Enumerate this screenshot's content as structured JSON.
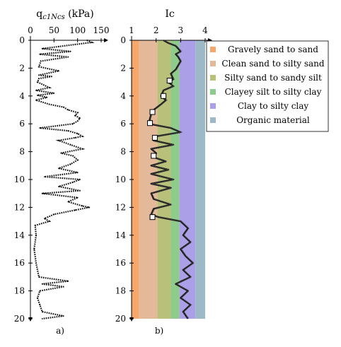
{
  "panels": [
    {
      "id": "a",
      "caption": "a)",
      "x_axis_title": "q",
      "x_axis_subscript": "c1Ncs",
      "x_axis_unit": " (kPa)",
      "x_ticks": [
        "0",
        "50",
        "100",
        "150"
      ],
      "y_ticks": [
        "0",
        "2",
        "4",
        "6",
        "8",
        "10",
        "12",
        "14",
        "16",
        "18",
        "20"
      ]
    },
    {
      "id": "b",
      "caption": "b)",
      "x_axis_title": "Ic",
      "x_ticks": [
        "1",
        "2",
        "3",
        "4"
      ],
      "y_ticks": [
        "0",
        "2",
        "4",
        "6",
        "8",
        "10",
        "12",
        "14",
        "16",
        "18",
        "20"
      ]
    }
  ],
  "legend": [
    {
      "label": "Gravely sand to sand",
      "color": "#f6a86a"
    },
    {
      "label": "Clean sand to silty sand",
      "color": "#e3b99a"
    },
    {
      "label": "Silty sand to sandy silt",
      "color": "#b8c07a"
    },
    {
      "label": "Clayey silt to silty clay",
      "color": "#8fcb8a"
    },
    {
      "label": "Clay to silty clay",
      "color": "#ab9fe8"
    },
    {
      "label": "Organic material",
      "color": "#9db8c6"
    }
  ],
  "chart_data": [
    {
      "type": "line",
      "panel": "a",
      "orientation": "depth-profile",
      "xlim": [
        0,
        150
      ],
      "ylim": [
        0,
        20
      ],
      "y_inverted": true,
      "series": [
        {
          "depth": [
            0,
            0.15,
            0.3,
            0.45,
            0.6,
            0.8,
            1.0,
            1.2,
            1.5,
            1.9,
            2.2,
            2.5,
            2.6,
            2.75,
            3.0,
            3.4,
            3.6,
            3.8,
            3.95,
            4.1,
            4.3,
            4.6,
            4.8,
            5.0,
            5.2,
            5.4,
            5.6,
            5.8,
            6.0,
            6.3,
            6.5,
            6.7,
            6.9,
            7.0,
            7.2,
            7.5,
            7.8,
            8.1,
            8.3,
            8.6,
            8.9,
            9.2,
            9.5,
            9.8,
            10.0,
            10.2,
            10.5,
            10.8,
            11.0,
            11.3,
            11.6,
            11.9,
            12.0,
            12.2,
            12.5,
            12.8,
            13.0,
            13.3,
            14.0,
            15.0,
            16.0,
            17.0,
            17.3,
            17.5,
            17.7,
            18.0,
            18.5,
            19.0,
            19.5,
            19.8,
            20.0
          ],
          "qc1Ncs": [
            120,
            130,
            95,
            60,
            25,
            85,
            20,
            80,
            22,
            18,
            60,
            18,
            45,
            18,
            15,
            40,
            12,
            50,
            15,
            35,
            12,
            40,
            70,
            80,
            100,
            95,
            105,
            100,
            90,
            20,
            80,
            100,
            110,
            95,
            60,
            85,
            110,
            65,
            90,
            100,
            85,
            60,
            100,
            30,
            105,
            90,
            60,
            105,
            25,
            100,
            80,
            110,
            125,
            95,
            50,
            30,
            40,
            10,
            12,
            8,
            12,
            18,
            80,
            25,
            70,
            20,
            15,
            20,
            25,
            70,
            25
          ]
        }
      ]
    },
    {
      "type": "line",
      "panel": "b",
      "orientation": "depth-profile",
      "xlim": [
        1,
        4
      ],
      "ylim": [
        0,
        20
      ],
      "y_inverted": true,
      "series": [
        {
          "name": "Ic",
          "depth": [
            0,
            0.2,
            0.4,
            0.6,
            0.8,
            1.0,
            1.2,
            1.5,
            1.8,
            2.1,
            2.4,
            2.8,
            3.0,
            3.3,
            3.6,
            4.0,
            4.3,
            4.6,
            5.0,
            5.3,
            5.6,
            6.0,
            6.3,
            6.6,
            6.9,
            7.2,
            7.5,
            7.8,
            8.1,
            8.4,
            8.7,
            9.0,
            9.3,
            9.6,
            10.0,
            10.3,
            10.6,
            11.0,
            11.4,
            11.8,
            12.1,
            12.5,
            12.7,
            13.0,
            13.5,
            14.0,
            14.5,
            15.0,
            15.5,
            16.0,
            16.5,
            17.0,
            17.5,
            18.0,
            18.5,
            19.0,
            19.5,
            20.0
          ],
          "Ic": [
            2.3,
            2.5,
            2.8,
            2.9,
            3.0,
            2.8,
            2.9,
            3.0,
            2.9,
            2.8,
            2.6,
            2.7,
            2.5,
            2.7,
            2.3,
            2.2,
            2.4,
            2.2,
            1.9,
            1.8,
            1.75,
            1.7,
            2.6,
            3.0,
            2.0,
            1.9,
            2.7,
            1.8,
            2.0,
            1.9,
            2.4,
            1.8,
            2.5,
            1.8,
            2.7,
            1.8,
            2.6,
            1.8,
            1.9,
            2.6,
            1.9,
            1.8,
            2.1,
            3.0,
            3.3,
            3.1,
            3.4,
            3.0,
            3.2,
            3.5,
            3.1,
            3.4,
            2.8,
            3.3,
            3.0,
            3.4,
            3.1,
            3.3
          ]
        },
        {
          "name": "markers",
          "depth": [
            2.9,
            4.0,
            5.15,
            5.95,
            7.0,
            8.3,
            12.7
          ],
          "Ic": [
            2.55,
            2.3,
            1.85,
            1.75,
            1.95,
            1.9,
            1.85
          ]
        }
      ],
      "bands": [
        {
          "label": "Gravely sand to sand",
          "from": 1.0,
          "to": 1.31,
          "color": "#f6a86a"
        },
        {
          "label": "Clean sand to silty sand",
          "from": 1.31,
          "to": 2.05,
          "color": "#e3b99a"
        },
        {
          "label": "Silty sand to sandy silt",
          "from": 2.05,
          "to": 2.6,
          "color": "#b8c07a"
        },
        {
          "label": "Clayey silt to silty clay",
          "from": 2.6,
          "to": 2.95,
          "color": "#8fcb8a"
        },
        {
          "label": "Clay to silty clay",
          "from": 2.95,
          "to": 3.6,
          "color": "#ab9fe8"
        },
        {
          "label": "Organic material",
          "from": 3.6,
          "to": 4.0,
          "color": "#9db8c6"
        }
      ]
    }
  ]
}
